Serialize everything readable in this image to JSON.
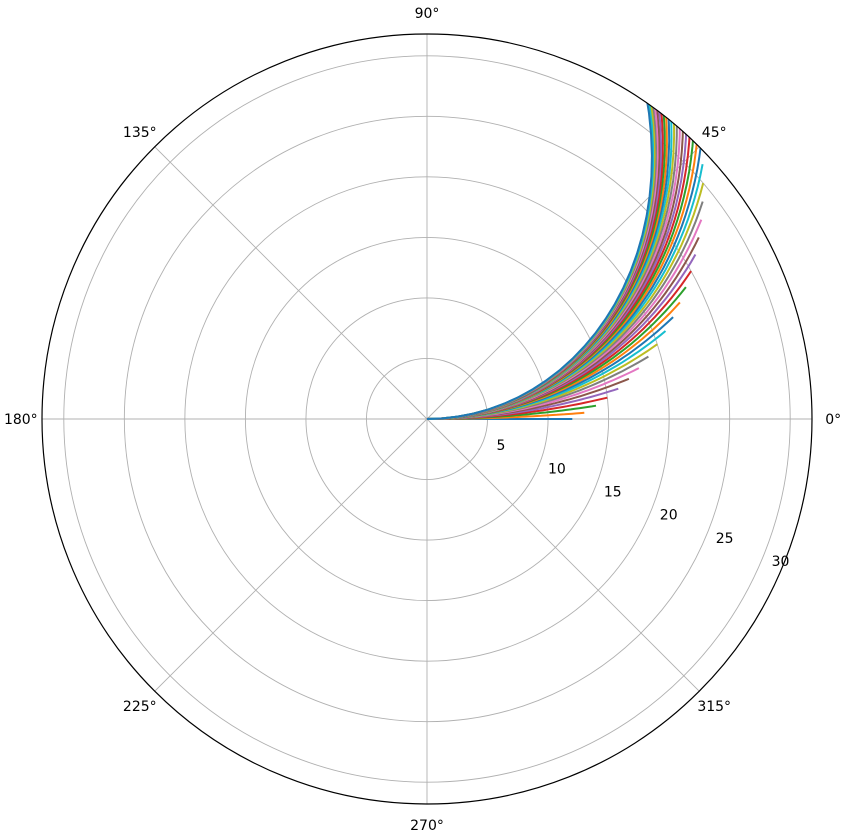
{
  "chart_data": {
    "type": "line",
    "projection": "polar",
    "title": "",
    "theta_unit": "degrees",
    "theta_ticks": [
      0,
      45,
      90,
      135,
      180,
      225,
      270,
      315
    ],
    "theta_tick_labels": [
      "0°",
      "45°",
      "90°",
      "135°",
      "180°",
      "225°",
      "270°",
      "315°"
    ],
    "r_ticks": [
      5,
      10,
      15,
      20,
      25,
      30
    ],
    "r_tick_labels": [
      "5",
      "10",
      "15",
      "20",
      "25",
      "30"
    ],
    "rlim": [
      0,
      31.8
    ],
    "r_label_angle_deg": -22.5,
    "grid": true,
    "legend": "none",
    "series_description": "41 curves r = 2*f(theta) for f = 0..20 in steps of 0.5, theta = 0..90 degrees, clipped to the axis",
    "color_cycle": [
      "#1f77b4",
      "#ff7f0e",
      "#2ca02c",
      "#d62728",
      "#9467bd",
      "#8c564b",
      "#e377c2",
      "#7f7f7f",
      "#bcbd22",
      "#17becf"
    ],
    "generator": {
      "f_start": 0,
      "f_step": 0.5,
      "count": 41,
      "theta_deg_range": [
        0,
        90
      ],
      "r_scale": 2
    }
  }
}
